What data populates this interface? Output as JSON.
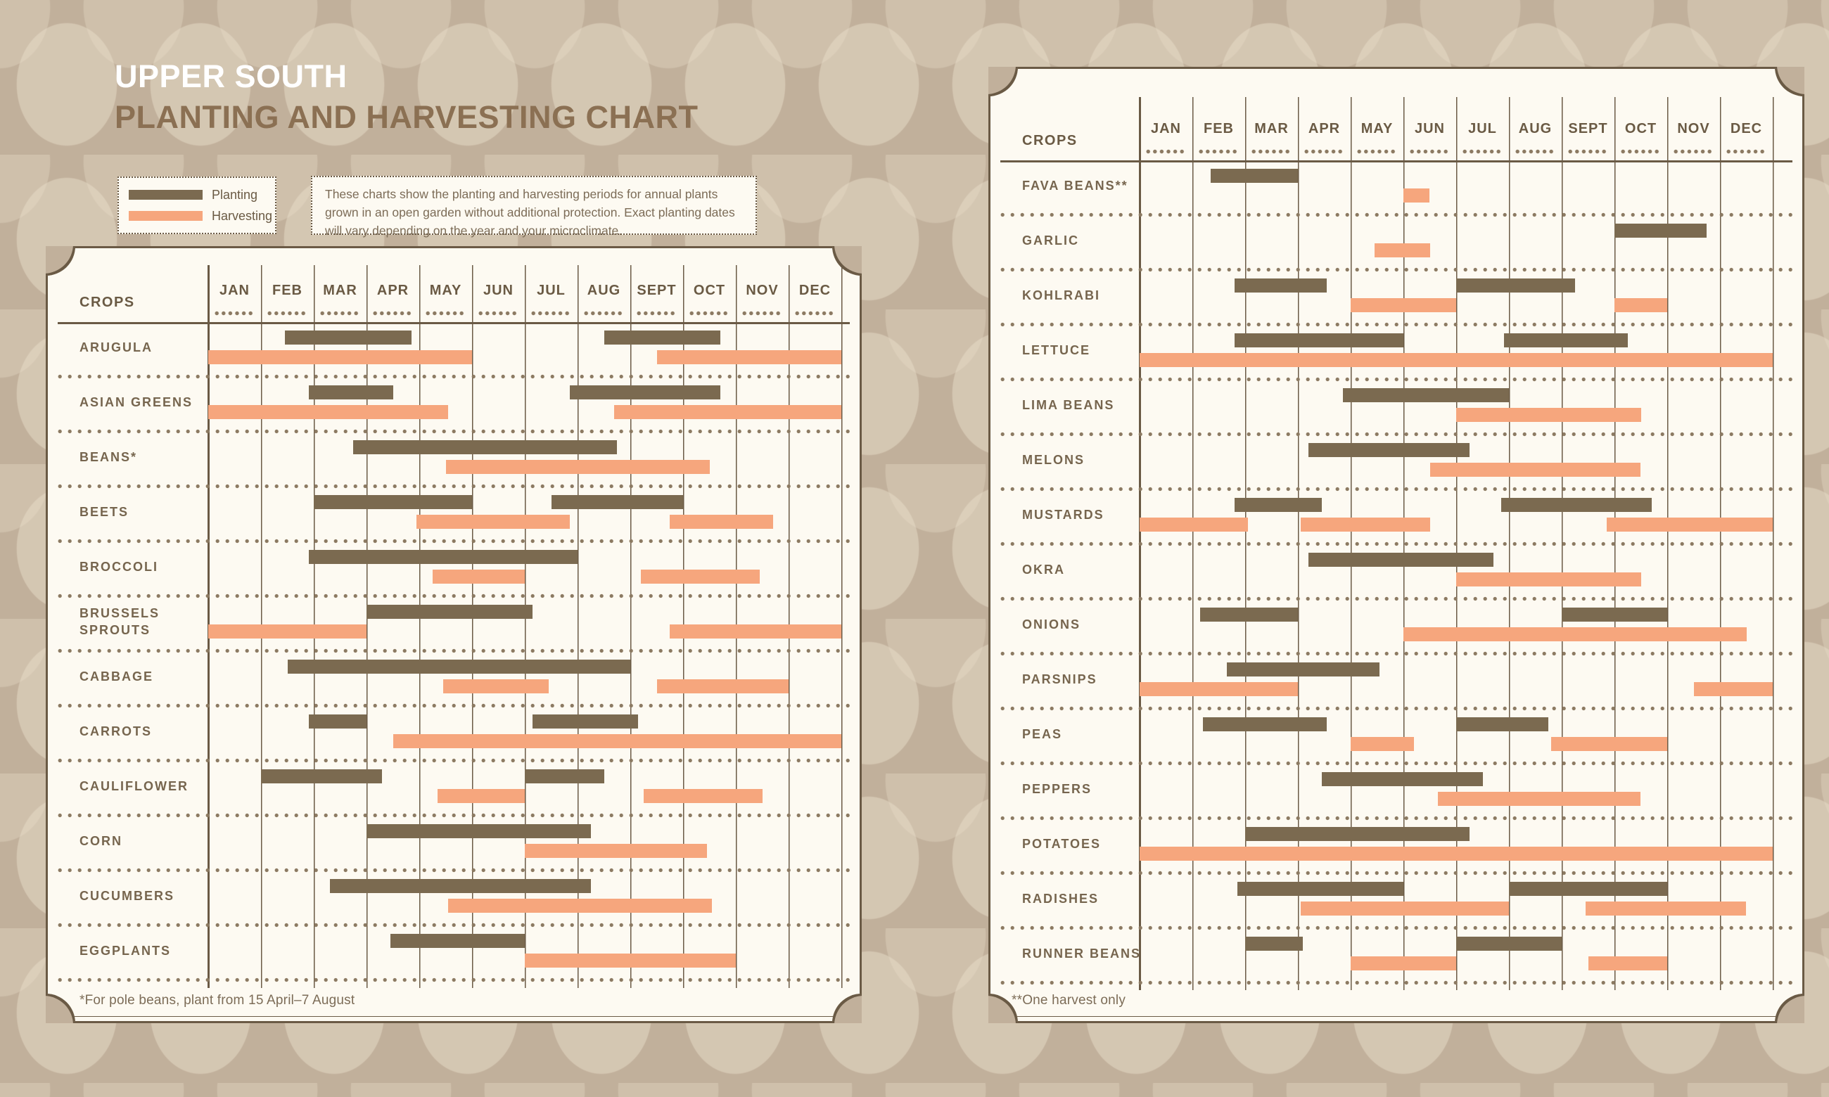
{
  "page": {
    "title_line1": "UPPER SOUTH",
    "title_line2": "PLANTING AND HARVESTING CHART",
    "description": "These charts show the planting and harvesting periods for annual plants grown in an open garden without additional protection. Exact planting dates will vary depending on the year and your microclimate."
  },
  "legend": {
    "planting_label": "Planting",
    "harvesting_label": "Harvesting"
  },
  "crops_header": "CROPS",
  "months": [
    "JAN",
    "FEB",
    "MAR",
    "APR",
    "MAY",
    "JUN",
    "JUL",
    "AUG",
    "SEPT",
    "OCT",
    "NOV",
    "DEC"
  ],
  "colors": {
    "planting": "#7b6a50",
    "harvesting": "#f6a67d",
    "background": "#c1b09b",
    "panel": "#fdfaf2",
    "ink": "#6a5a44",
    "title_accent": "#8b7053"
  },
  "chart_data": [
    {
      "type": "gantt",
      "title": "Upper South planting and harvesting chart — panel 1",
      "legend": [
        "Planting",
        "Harvesting"
      ],
      "x_axis": {
        "unit": "months",
        "range": [
          0,
          12
        ],
        "labels": [
          "JAN",
          "FEB",
          "MAR",
          "APR",
          "MAY",
          "JUN",
          "JUL",
          "AUG",
          "SEPT",
          "OCT",
          "NOV",
          "DEC"
        ]
      },
      "footnote": "*For pole beans, plant from 15 April–7 August",
      "crops": [
        {
          "name": "ARUGULA",
          "planting": [
            [
              1.45,
              3.85
            ],
            [
              7.5,
              9.7
            ]
          ],
          "harvesting": [
            [
              0,
              5
            ],
            [
              8.5,
              12
            ]
          ]
        },
        {
          "name": "ASIAN GREENS",
          "planting": [
            [
              1.9,
              3.5
            ],
            [
              6.85,
              9.7
            ]
          ],
          "harvesting": [
            [
              0,
              4.55
            ],
            [
              7.7,
              12
            ]
          ]
        },
        {
          "name": "BEANS*",
          "planting": [
            [
              2.75,
              7.75
            ]
          ],
          "harvesting": [
            [
              4.5,
              9.5
            ]
          ]
        },
        {
          "name": "BEETS",
          "planting": [
            [
              2,
              5
            ],
            [
              6.5,
              9
            ]
          ],
          "harvesting": [
            [
              3.95,
              6.85
            ],
            [
              8.75,
              10.7
            ]
          ]
        },
        {
          "name": "BROCCOLI",
          "planting": [
            [
              1.9,
              7
            ]
          ],
          "harvesting": [
            [
              4.25,
              6
            ],
            [
              8.2,
              10.45
            ]
          ]
        },
        {
          "name": "BRUSSELS SPROUTS",
          "planting": [
            [
              3,
              6.15
            ]
          ],
          "harvesting": [
            [
              0,
              3
            ],
            [
              8.75,
              12
            ]
          ]
        },
        {
          "name": "CABBAGE",
          "planting": [
            [
              1.5,
              8
            ]
          ],
          "harvesting": [
            [
              4.45,
              6.45
            ],
            [
              8.5,
              11
            ]
          ]
        },
        {
          "name": "CARROTS",
          "planting": [
            [
              1.9,
              3
            ],
            [
              6.15,
              8.15
            ]
          ],
          "harvesting": [
            [
              3.5,
              12
            ]
          ]
        },
        {
          "name": "CAULIFLOWER",
          "planting": [
            [
              1,
              3.3
            ],
            [
              6,
              7.5
            ]
          ],
          "harvesting": [
            [
              4.35,
              6
            ],
            [
              8.25,
              10.5
            ]
          ]
        },
        {
          "name": "CORN",
          "planting": [
            [
              3,
              7.25
            ]
          ],
          "harvesting": [
            [
              6,
              9.45
            ]
          ]
        },
        {
          "name": "CUCUMBERS",
          "planting": [
            [
              2.3,
              7.25
            ]
          ],
          "harvesting": [
            [
              4.55,
              9.55
            ]
          ]
        },
        {
          "name": "EGGPLANTS",
          "planting": [
            [
              3.45,
              6
            ]
          ],
          "harvesting": [
            [
              6,
              10
            ]
          ]
        }
      ]
    },
    {
      "type": "gantt",
      "title": "Upper South planting and harvesting chart — panel 2",
      "legend": [
        "Planting",
        "Harvesting"
      ],
      "x_axis": {
        "unit": "months",
        "range": [
          0,
          12
        ],
        "labels": [
          "JAN",
          "FEB",
          "MAR",
          "APR",
          "MAY",
          "JUN",
          "JUL",
          "AUG",
          "SEPT",
          "OCT",
          "NOV",
          "DEC"
        ]
      },
      "footnote": "**One harvest only",
      "crops": [
        {
          "name": "FAVA BEANS**",
          "planting": [
            [
              1.35,
              3
            ]
          ],
          "harvesting": [
            [
              5,
              5.5
            ]
          ]
        },
        {
          "name": "GARLIC",
          "planting": [
            [
              9,
              10.75
            ]
          ],
          "harvesting": [
            [
              4.45,
              5.5
            ]
          ]
        },
        {
          "name": "KOHLRABI",
          "planting": [
            [
              1.8,
              3.55
            ],
            [
              6,
              8.25
            ]
          ],
          "harvesting": [
            [
              4,
              6
            ],
            [
              9,
              10
            ]
          ]
        },
        {
          "name": "LETTUCE",
          "planting": [
            [
              1.8,
              5
            ],
            [
              6.9,
              9.25
            ]
          ],
          "harvesting": [
            [
              0,
              12
            ]
          ]
        },
        {
          "name": "LIMA BEANS",
          "planting": [
            [
              3.85,
              7
            ]
          ],
          "harvesting": [
            [
              6,
              9.5
            ]
          ]
        },
        {
          "name": "MELONS",
          "planting": [
            [
              3.2,
              6.25
            ]
          ],
          "harvesting": [
            [
              5.5,
              9.5
            ]
          ]
        },
        {
          "name": "MUSTARDS",
          "planting": [
            [
              1.8,
              3.45
            ],
            [
              6.85,
              9.7
            ]
          ],
          "harvesting": [
            [
              0,
              2.05
            ],
            [
              3.05,
              5.5
            ],
            [
              8.85,
              12
            ]
          ]
        },
        {
          "name": "OKRA",
          "planting": [
            [
              3.2,
              6.7
            ]
          ],
          "harvesting": [
            [
              6,
              9.5
            ]
          ]
        },
        {
          "name": "ONIONS",
          "planting": [
            [
              1.15,
              3
            ],
            [
              8,
              10
            ]
          ],
          "harvesting": [
            [
              5,
              11.5
            ]
          ]
        },
        {
          "name": "PARSNIPS",
          "planting": [
            [
              1.65,
              4.55
            ]
          ],
          "harvesting": [
            [
              0,
              3
            ],
            [
              10.5,
              12
            ]
          ]
        },
        {
          "name": "PEAS",
          "planting": [
            [
              1.2,
              3.55
            ],
            [
              6,
              7.75
            ]
          ],
          "harvesting": [
            [
              4,
              5.2
            ],
            [
              7.8,
              10
            ]
          ]
        },
        {
          "name": "PEPPERS",
          "planting": [
            [
              3.45,
              6.5
            ]
          ],
          "harvesting": [
            [
              5.65,
              9.5
            ]
          ]
        },
        {
          "name": "POTATOES",
          "planting": [
            [
              2,
              6.25
            ]
          ],
          "harvesting": [
            [
              0,
              12
            ]
          ]
        },
        {
          "name": "RADISHES",
          "planting": [
            [
              1.85,
              5
            ],
            [
              7,
              10
            ]
          ],
          "harvesting": [
            [
              3.05,
              7
            ],
            [
              8.45,
              11.5
            ]
          ]
        },
        {
          "name": "RUNNER BEANS",
          "planting": [
            [
              2,
              3.1
            ],
            [
              6,
              8
            ]
          ],
          "harvesting": [
            [
              4,
              6
            ],
            [
              8.5,
              10
            ]
          ]
        }
      ]
    }
  ]
}
